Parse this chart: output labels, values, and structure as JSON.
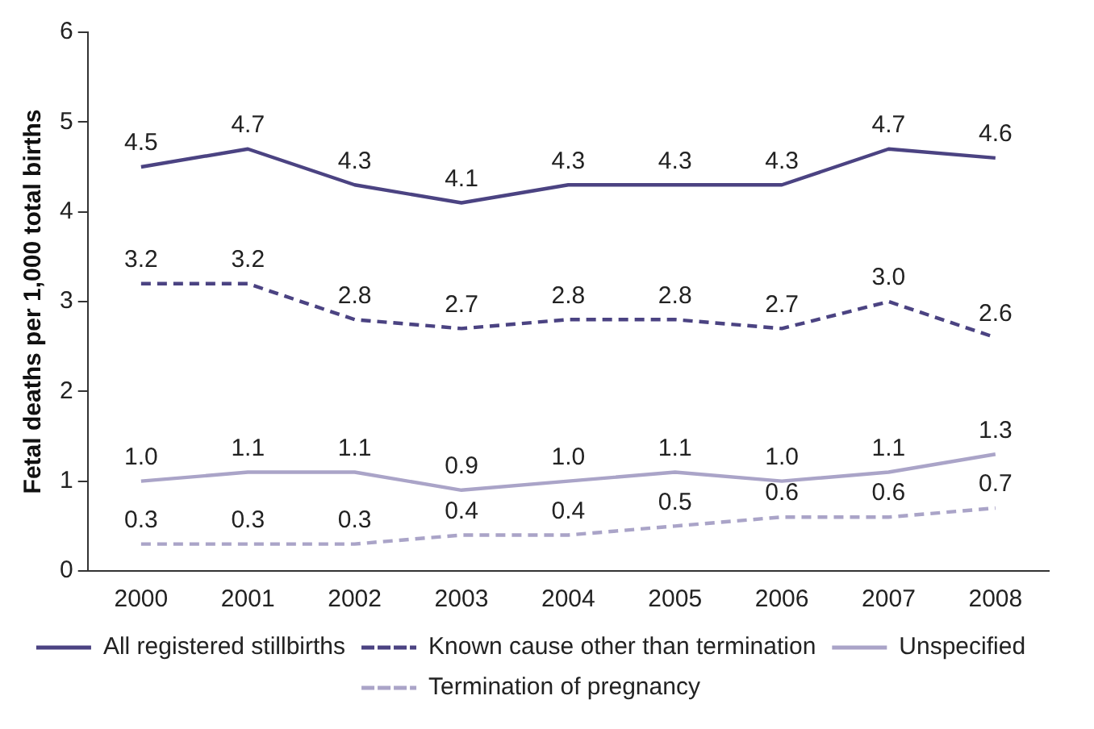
{
  "chart_data": {
    "type": "line",
    "ylabel": "Fetal deaths per 1,000 total births",
    "categories": [
      "2000",
      "2001",
      "2002",
      "2003",
      "2004",
      "2005",
      "2006",
      "2007",
      "2008"
    ],
    "series": [
      {
        "name": "All registered stillbirths",
        "color": "#4b4382",
        "line_style": "solid",
        "values": [
          4.5,
          4.7,
          4.3,
          4.1,
          4.3,
          4.3,
          4.3,
          4.7,
          4.6
        ],
        "value_labels": [
          "4.5",
          "4.7",
          "4.3",
          "4.1",
          "4.3",
          "4.3",
          "4.3",
          "4.7",
          "4.6"
        ]
      },
      {
        "name": "Known cause other than termination",
        "color": "#4b4382",
        "line_style": "dashed",
        "values": [
          3.2,
          3.2,
          2.8,
          2.7,
          2.8,
          2.8,
          2.7,
          3.0,
          2.6
        ],
        "value_labels": [
          "3.2",
          "3.2",
          "2.8",
          "2.7",
          "2.8",
          "2.8",
          "2.7",
          "3.0",
          "2.6"
        ]
      },
      {
        "name": "Unspecified",
        "color": "#aaa4c8",
        "line_style": "solid",
        "values": [
          1.0,
          1.1,
          1.1,
          0.9,
          1.0,
          1.1,
          1.0,
          1.1,
          1.3
        ],
        "value_labels": [
          "1.0",
          "1.1",
          "1.1",
          "0.9",
          "1.0",
          "1.1",
          "1.0",
          "1.1",
          "1.3"
        ]
      },
      {
        "name": "Termination of pregnancy",
        "color": "#aaa4c8",
        "line_style": "dashed",
        "values": [
          0.3,
          0.3,
          0.3,
          0.4,
          0.4,
          0.5,
          0.6,
          0.6,
          0.7
        ],
        "value_labels": [
          "0.3",
          "0.3",
          "0.3",
          "0.4",
          "0.4",
          "0.5",
          "0.6",
          "0.6",
          "0.7"
        ]
      }
    ],
    "ylim": [
      0,
      6
    ],
    "yticks": [
      0,
      1,
      2,
      3,
      4,
      5,
      6
    ],
    "grid": false,
    "legend": "bottom",
    "marker": "none"
  }
}
